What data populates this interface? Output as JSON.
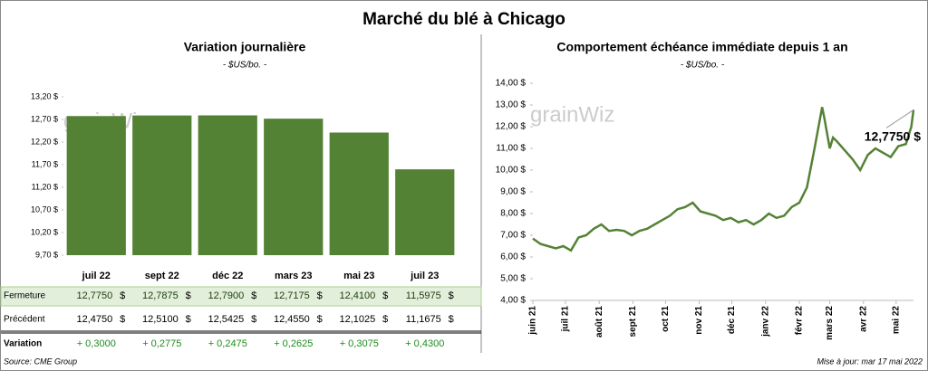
{
  "title": "Marché du blé à Chicago",
  "watermark": "grainWiz",
  "source": "Source: CME Group",
  "updated": "Mise à jour: mar 17 mai 2022",
  "chart_data": [
    {
      "type": "bar",
      "title": "Variation journalière",
      "subtitle": "- $US/bo. -",
      "categories": [
        "juil 22",
        "sept 22",
        "déc 22",
        "mars 23",
        "mai 23",
        "juil 23"
      ],
      "values": [
        12.775,
        12.7875,
        12.79,
        12.7175,
        12.41,
        11.5975
      ],
      "color": "#548235",
      "ylim": [
        9.7,
        13.2
      ],
      "yticks": [
        {
          "value": 9.7,
          "label": "9,70 $"
        },
        {
          "value": 10.2,
          "label": "10,20 $"
        },
        {
          "value": 10.7,
          "label": "10,70 $"
        },
        {
          "value": 11.2,
          "label": "11,20 $"
        },
        {
          "value": 11.7,
          "label": "11,70 $"
        },
        {
          "value": 12.2,
          "label": "12,20 $"
        },
        {
          "value": 12.7,
          "label": "12,70 $"
        },
        {
          "value": 13.2,
          "label": "13,20 $"
        }
      ],
      "grid": false
    },
    {
      "type": "line",
      "title": "Comportement échéance immédiate depuis 1 an",
      "subtitle": "- $US/bo. -",
      "x": [
        0,
        7,
        14,
        21,
        28,
        35,
        42,
        49,
        56,
        63,
        70,
        77,
        84,
        91,
        98,
        105,
        112,
        119,
        126,
        133,
        140,
        147,
        154,
        161,
        168,
        175,
        182,
        189,
        196,
        203,
        210,
        217,
        224,
        231,
        238,
        245,
        252,
        259,
        266,
        268,
        273,
        276,
        280,
        287,
        294,
        301,
        308,
        315,
        322,
        329,
        336,
        343,
        348,
        350
      ],
      "series": [
        {
          "name": "Échéance immédiate",
          "color": "#548235",
          "values": [
            6.85,
            6.6,
            6.5,
            6.4,
            6.5,
            6.3,
            6.9,
            7.0,
            7.3,
            7.5,
            7.2,
            7.25,
            7.2,
            7.0,
            7.2,
            7.3,
            7.5,
            7.7,
            7.9,
            8.2,
            8.3,
            8.5,
            8.1,
            8.0,
            7.9,
            7.7,
            7.8,
            7.6,
            7.7,
            7.5,
            7.7,
            8.0,
            7.8,
            7.9,
            8.3,
            8.5,
            9.2,
            11.0,
            12.9,
            12.4,
            11.0,
            11.5,
            11.3,
            10.9,
            10.5,
            10.0,
            10.7,
            11.0,
            10.8,
            10.6,
            11.1,
            11.2,
            12.0,
            12.775
          ]
        }
      ],
      "xlim": [
        0,
        350
      ],
      "xticks": [
        {
          "value": 0,
          "label": "juin 21"
        },
        {
          "value": 30,
          "label": "juil 21"
        },
        {
          "value": 61,
          "label": "août 21"
        },
        {
          "value": 92,
          "label": "sept 21"
        },
        {
          "value": 122,
          "label": "oct 21"
        },
        {
          "value": 153,
          "label": "nov 21"
        },
        {
          "value": 183,
          "label": "déc 21"
        },
        {
          "value": 214,
          "label": "janv 22"
        },
        {
          "value": 245,
          "label": "févr 22"
        },
        {
          "value": 273,
          "label": "mars 22"
        },
        {
          "value": 304,
          "label": "avr 22"
        },
        {
          "value": 334,
          "label": "mai 22"
        }
      ],
      "ylim": [
        4,
        14
      ],
      "yticks": [
        {
          "value": 4,
          "label": "4,00 $"
        },
        {
          "value": 5,
          "label": "5,00 $"
        },
        {
          "value": 6,
          "label": "6,00 $"
        },
        {
          "value": 7,
          "label": "7,00 $"
        },
        {
          "value": 8,
          "label": "8,00 $"
        },
        {
          "value": 9,
          "label": "9,00 $"
        },
        {
          "value": 10,
          "label": "10,00 $"
        },
        {
          "value": 11,
          "label": "11,00 $"
        },
        {
          "value": 12,
          "label": "12,00 $"
        },
        {
          "value": 13,
          "label": "13,00 $"
        },
        {
          "value": 14,
          "label": "14,00 $"
        }
      ],
      "annotation": "12,7750 $"
    }
  ],
  "table": {
    "rows": [
      {
        "label": "Fermeture",
        "cells": [
          "12,7750",
          "12,7875",
          "12,7900",
          "12,7175",
          "12,4100",
          "11,5975"
        ],
        "unit": "$"
      },
      {
        "label": "Précédent",
        "cells": [
          "12,4750",
          "12,5100",
          "12,5425",
          "12,4550",
          "12,1025",
          "11,1675"
        ],
        "unit": "$"
      },
      {
        "label": "Variation",
        "cells": [
          "+ 0,3000",
          "+ 0,2775",
          "+ 0,2475",
          "+ 0,2625",
          "+ 0,3075",
          "+ 0,4300"
        ]
      }
    ]
  }
}
